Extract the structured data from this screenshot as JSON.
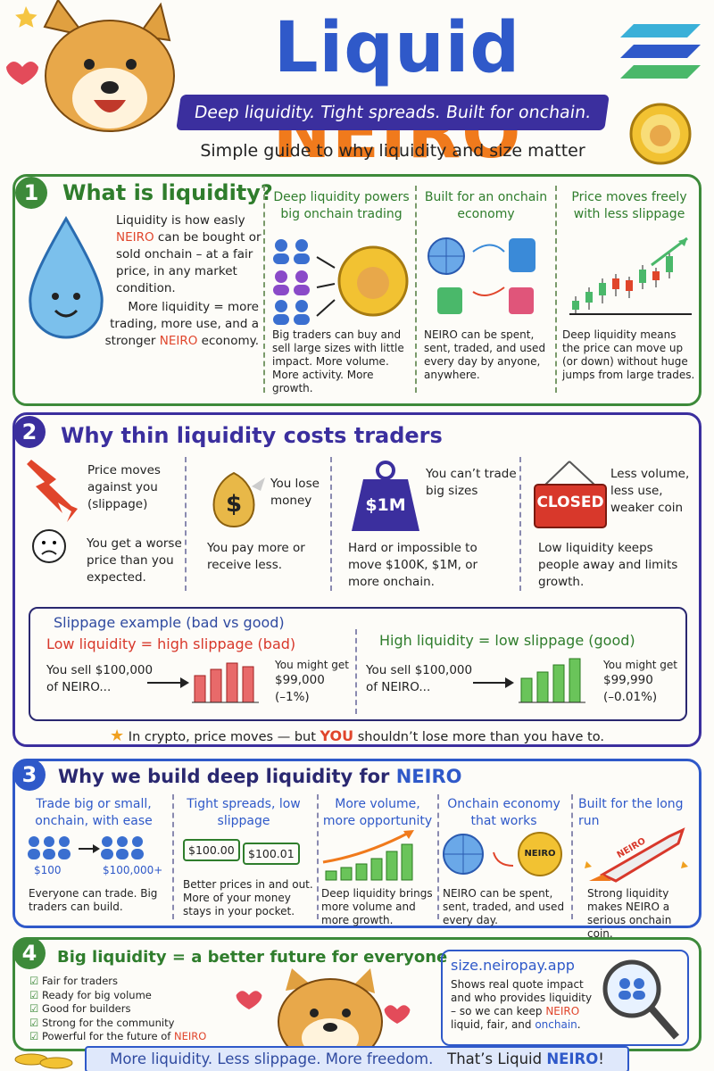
{
  "header": {
    "title_part1": "Liquid",
    "title_part2": "NEIRO",
    "tagline": "Deep liquidity. Tight spreads. Built for onchain.",
    "subtitle": "Simple guide to why liquidity and size matter"
  },
  "section1": {
    "number": "1",
    "title": "What is liquidity?",
    "intro_before": "Liquidity is how easly ",
    "intro_highlight": "NEIRO",
    "intro_after": " can be bought or sold onchain – at a fair price, in any market condition.",
    "more_before": "More liquidity = more trading, more use, and a stronger ",
    "more_highlight": "NEIRO",
    "more_after": " economy.",
    "columns": [
      {
        "title": "Deep liquidity powers big onchain trading",
        "body": "Big traders can buy and sell large sizes with little impact. More volume. More activity. More growth."
      },
      {
        "title": "Built for an onchain economy",
        "body": "NEIRO can be spent, sent, traded, and used every day by anyone, anywhere."
      },
      {
        "title": "Price moves freely with less slippage",
        "body": "Deep liquidity means the price can move up (or down) without huge jumps from large trades."
      }
    ]
  },
  "section2": {
    "number": "2",
    "title": "Why thin liquidity costs traders",
    "items": [
      {
        "head": "Price moves against you (slippage)",
        "body": "You get a worse price than you expected."
      },
      {
        "head": "You lose money",
        "body": "You pay more or receive less."
      },
      {
        "head": "You can’t trade big sizes",
        "icon_label": "$1M",
        "body": "Hard or impossible to move $100K, $1M, or more onchain."
      },
      {
        "head": "Less volume, less use, weaker coin",
        "icon_label": "CLOSED",
        "body": "Low liquidity keeps people away and limits growth."
      }
    ],
    "slippage": {
      "title": "Slippage example (bad vs good)",
      "bad": {
        "heading": "Low liquidity = high slippage (bad)",
        "sell": "You sell $100,000 of NEIRO...",
        "get_label": "You might get",
        "get_amount": "$99,000",
        "get_change": "(–1%)"
      },
      "good": {
        "heading": "High liquidity = low slippage (good)",
        "sell": "You sell $100,000 of NEIRO...",
        "get_label": "You might get",
        "get_amount": "$99,990",
        "get_change": "(–0.01%)"
      }
    },
    "note_before": "In crypto, price moves — but ",
    "note_highlight": "YOU",
    "note_after": " shouldn’t lose more than you have to."
  },
  "section3": {
    "number": "3",
    "title_before": "Why we build deep liquidity for ",
    "title_highlight": "NEIRO",
    "columns": [
      {
        "title": "Trade big or small, onchain, with ease",
        "labels": [
          "$100",
          "$100,000+"
        ],
        "body": "Everyone can trade. Big traders can build."
      },
      {
        "title": "Tight spreads, low slippage",
        "labels": [
          "$100.00",
          "$100.01"
        ],
        "body": "Better prices in and out. More of your money stays in your pocket."
      },
      {
        "title": "More volume, more opportunity",
        "body": "Deep liquidity brings more volume and more growth."
      },
      {
        "title": "Onchain economy that works",
        "labels": [
          "NEIRO"
        ],
        "body": "NEIRO can be spent, sent, traded, and used every day."
      },
      {
        "title": "Built for the long run",
        "labels": [
          "NEIRO"
        ],
        "body": "Strong liquidity makes NEIRO a serious onchain coin."
      }
    ]
  },
  "section4": {
    "number": "4",
    "title": "Big liquidity = a better future for everyone",
    "checklist": [
      "Fair for traders",
      "Ready for big volume",
      "Good for builders",
      "Strong for the community"
    ],
    "checklist_last_before": "Powerful for the future of ",
    "checklist_last_highlight": "NEIRO",
    "box": {
      "url": "size.neiropay.app",
      "text_before": "Shows real quote impact and who provides liquidity – so we can keep ",
      "text_highlight1": "NEIRO",
      "text_middle": " liquid, fair, and ",
      "text_highlight2": "onchain",
      "text_after": "."
    }
  },
  "footer": {
    "text": "More liquidity. Less slippage. More freedom.",
    "tag_before": "That’s Liquid ",
    "tag_highlight": "NEIRO",
    "tag_after": "!"
  }
}
